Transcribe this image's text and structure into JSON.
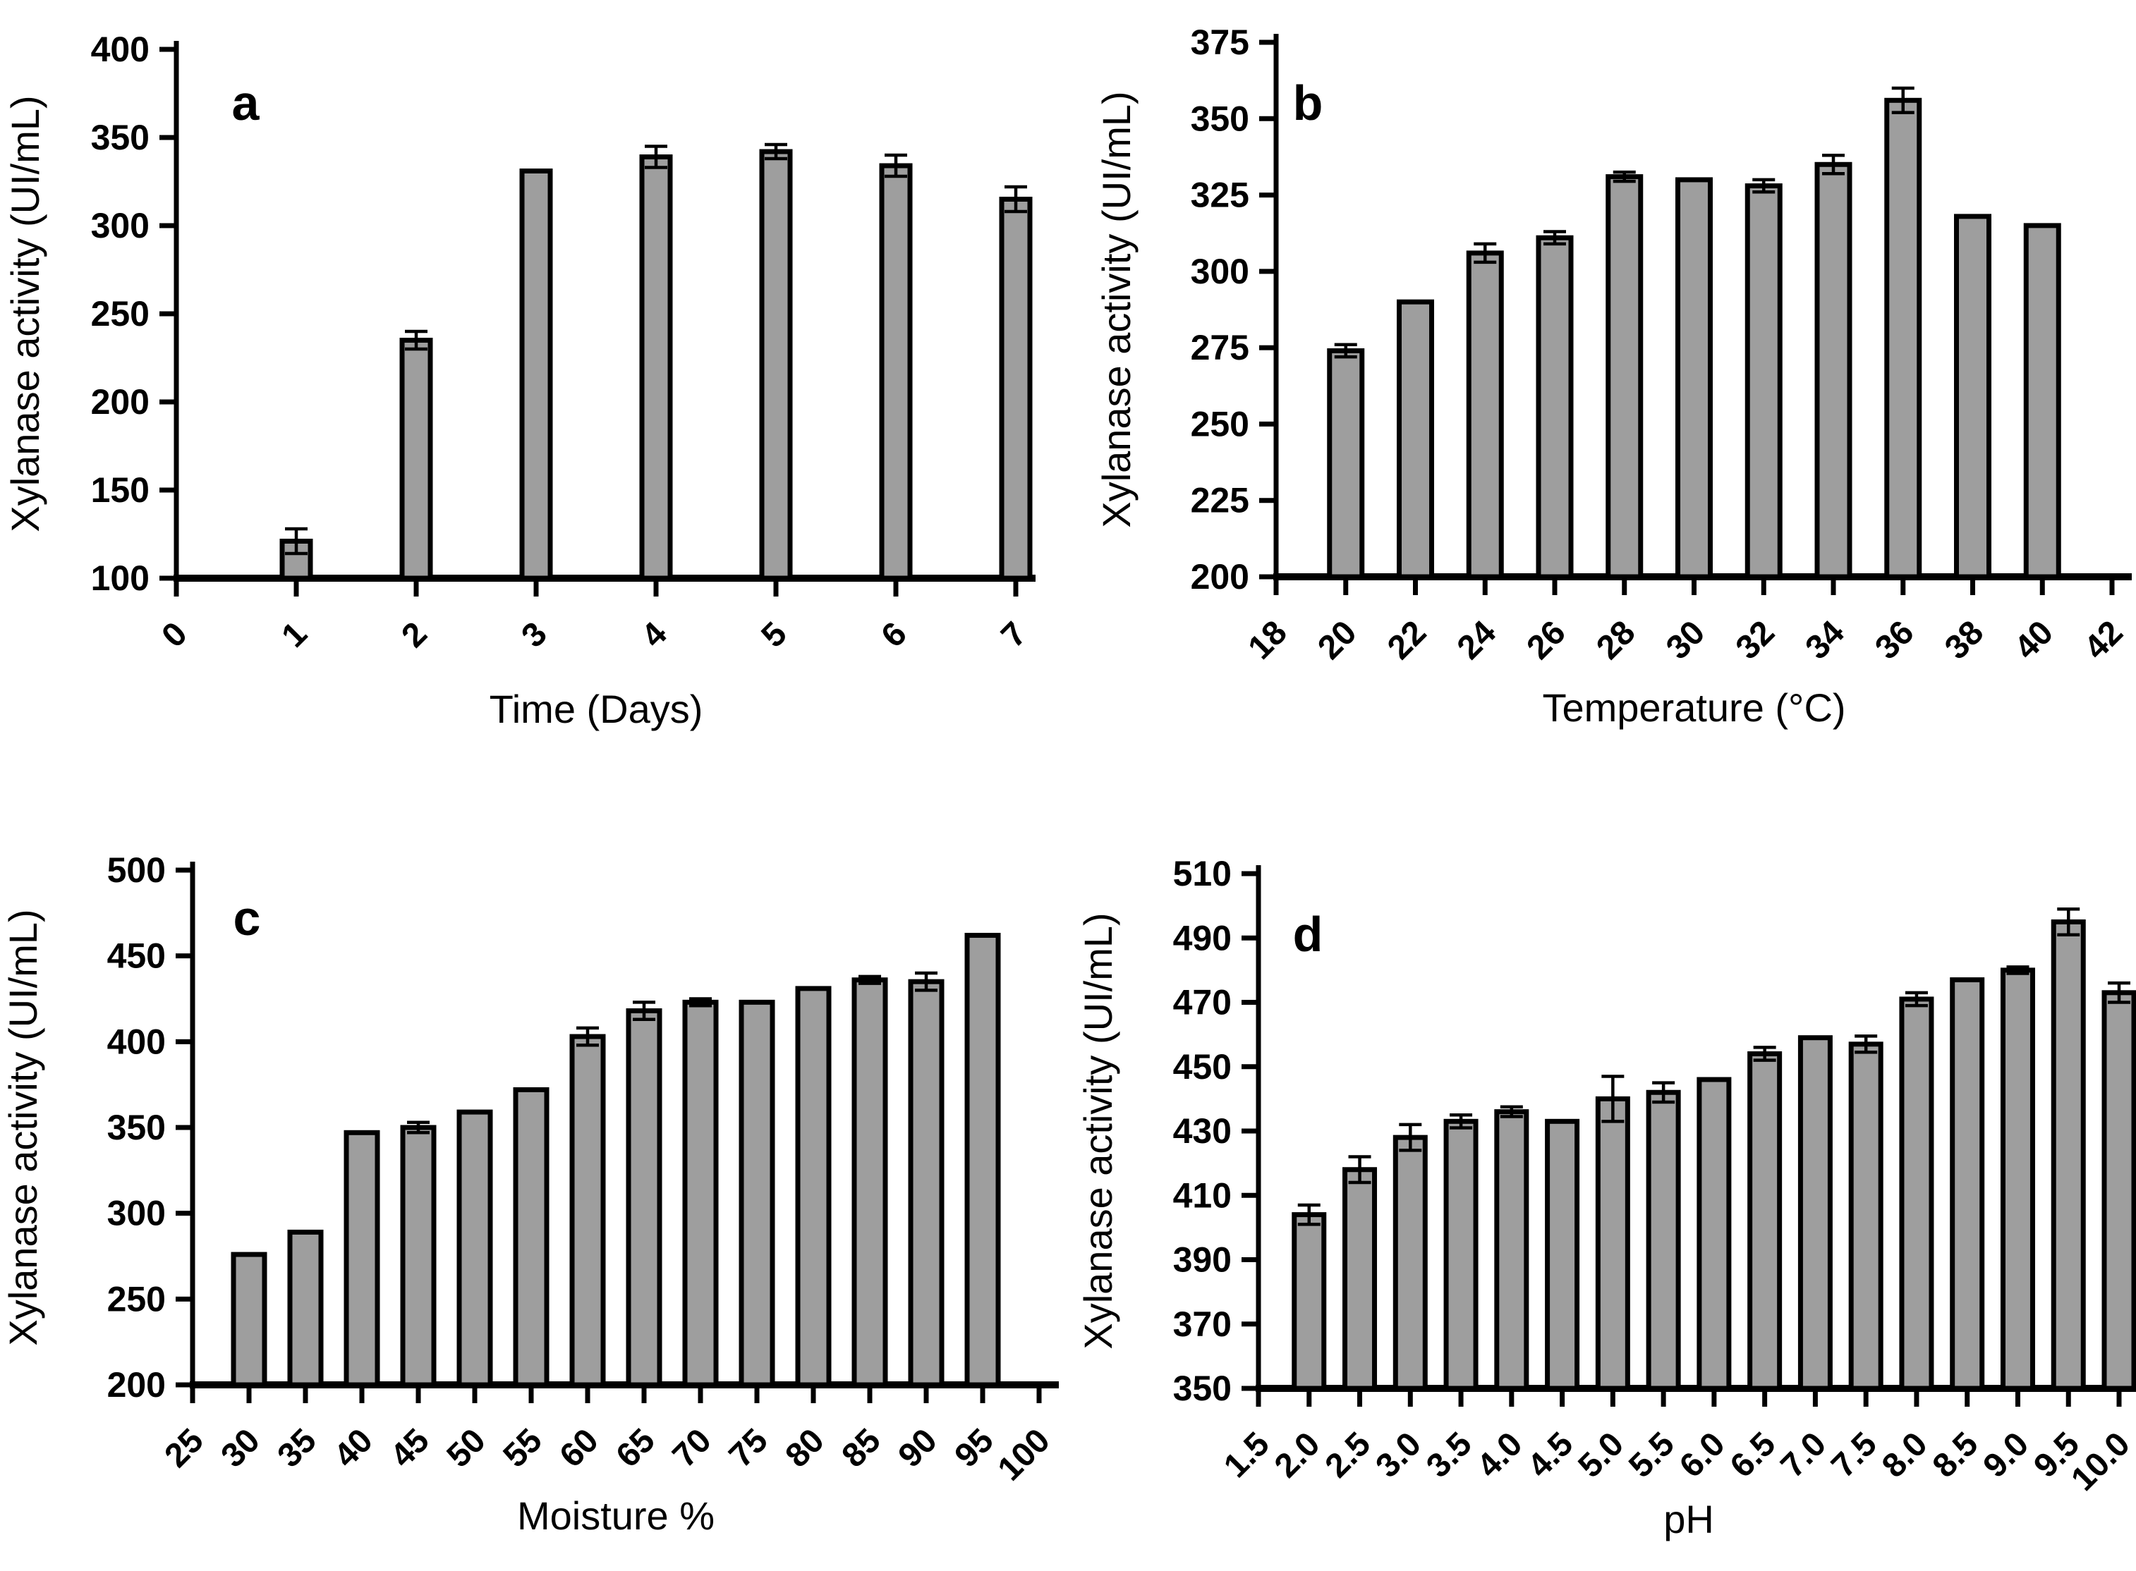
{
  "styles": {
    "background": "#ffffff",
    "bar_fill": "#9e9e9e",
    "bar_stroke": "#000000",
    "error_color": "#000000",
    "axis_color": "#000000"
  },
  "chart_data": [
    {
      "type": "bar",
      "panel_label": "a",
      "xlabel": "Time (Days)",
      "ylabel": "Xylanase activity (UI/mL)",
      "ylim": [
        100,
        400
      ],
      "yticks": [
        100,
        150,
        200,
        250,
        300,
        350,
        400
      ],
      "x_tick_labels": [
        "0",
        "1",
        "2",
        "3",
        "4",
        "5",
        "6",
        "7"
      ],
      "categories": [
        "1",
        "2",
        "3",
        "4",
        "5",
        "6",
        "7"
      ],
      "values": [
        121,
        235,
        331,
        339,
        342,
        334,
        315
      ],
      "errors": [
        7,
        5,
        0,
        6,
        4,
        6,
        7
      ],
      "grid": false,
      "legend": "none"
    },
    {
      "type": "bar",
      "panel_label": "b",
      "xlabel": "Temperature (°C)",
      "ylabel": "Xylanase activity (UI/mL)",
      "ylim": [
        200,
        375
      ],
      "yticks": [
        200,
        225,
        250,
        275,
        300,
        325,
        350,
        375
      ],
      "x_tick_labels": [
        "18",
        "20",
        "22",
        "24",
        "26",
        "28",
        "30",
        "32",
        "34",
        "36",
        "38",
        "40",
        "42"
      ],
      "categories": [
        "20",
        "22",
        "24",
        "26",
        "28",
        "30",
        "32",
        "34",
        "36",
        "38",
        "40"
      ],
      "values": [
        274,
        290,
        306,
        311,
        331,
        330,
        328,
        335,
        356,
        318,
        315
      ],
      "errors": [
        2,
        0,
        3,
        2,
        1.5,
        0,
        2,
        3,
        4,
        0,
        0
      ],
      "grid": false,
      "legend": "none"
    },
    {
      "type": "bar",
      "panel_label": "c",
      "xlabel": "Moisture %",
      "ylabel": "Xylanase activity (UI/mL)",
      "ylim": [
        200,
        500
      ],
      "yticks": [
        200,
        250,
        300,
        350,
        400,
        450,
        500
      ],
      "x_tick_labels": [
        "25",
        "30",
        "35",
        "40",
        "45",
        "50",
        "55",
        "60",
        "65",
        "70",
        "75",
        "80",
        "85",
        "90",
        "95",
        "100"
      ],
      "categories": [
        "30",
        "35",
        "40",
        "45",
        "50",
        "55",
        "60",
        "65",
        "70",
        "75",
        "80",
        "85",
        "90",
        "95"
      ],
      "values": [
        276,
        289,
        347,
        350,
        359,
        372,
        403,
        418,
        423,
        423,
        431,
        436,
        435,
        462
      ],
      "errors": [
        0,
        0,
        0,
        3,
        0,
        0,
        5,
        5,
        2,
        0,
        0,
        2,
        5,
        0
      ],
      "grid": false,
      "legend": "none"
    },
    {
      "type": "bar",
      "panel_label": "d",
      "xlabel": "pH",
      "ylabel": "Xylanase activity (UI/mL)",
      "ylim": [
        350,
        510
      ],
      "yticks": [
        350,
        370,
        390,
        410,
        430,
        450,
        470,
        490,
        510
      ],
      "x_tick_labels": [
        "1.5",
        "2.0",
        "2.5",
        "3.0",
        "3.5",
        "4.0",
        "4.5",
        "5.0",
        "5.5",
        "6.0",
        "6.5",
        "7.0",
        "7.5",
        "8.0",
        "8.5",
        "9.0",
        "9.5",
        "10.0"
      ],
      "categories": [
        "2.0",
        "2.5",
        "3.0",
        "3.5",
        "4.0",
        "4.5",
        "5.0",
        "5.5",
        "6.0",
        "6.5",
        "7.0",
        "7.5",
        "8.0",
        "8.5",
        "9.0",
        "9.5",
        "10.0"
      ],
      "values": [
        404,
        418,
        428,
        433,
        436,
        433,
        440,
        442,
        446,
        454,
        459,
        457,
        471,
        477,
        480,
        495,
        473
      ],
      "errors": [
        3,
        4,
        4,
        2,
        1.5,
        0,
        7,
        3,
        0,
        2,
        0,
        2.5,
        2,
        0,
        1,
        4,
        3
      ],
      "grid": false,
      "legend": "none"
    }
  ]
}
